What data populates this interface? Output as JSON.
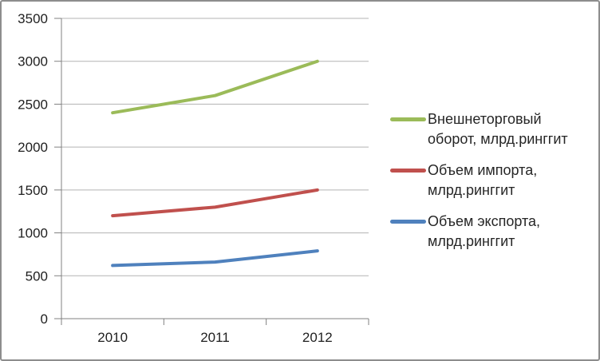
{
  "chart_data": {
    "type": "line",
    "categories": [
      "2010",
      "2011",
      "2012"
    ],
    "series": [
      {
        "name": "Внешнеторговый оборот, млрд.ринггит",
        "values": [
          2400,
          2600,
          3000
        ],
        "color": "#9BBB59"
      },
      {
        "name": "Объем импорта, млрд.ринггит",
        "values": [
          1200,
          1300,
          1500
        ],
        "color": "#C0504D"
      },
      {
        "name": "Объем экспорта, млрд.ринггит",
        "values": [
          620,
          660,
          790
        ],
        "color": "#4F81BD"
      }
    ],
    "title": "",
    "xlabel": "",
    "ylabel": "",
    "ylim": [
      0,
      3500
    ],
    "ytick_step": 500,
    "yticks": [
      "0",
      "500",
      "1000",
      "1500",
      "2000",
      "2500",
      "3000",
      "3500"
    ],
    "grid": true,
    "legend_position": "right",
    "line_width": 4
  },
  "style": {
    "gridline_color": "#b3b3b3",
    "axis_color": "#808080",
    "tick_color": "#808080",
    "tick_label_color": "#1f1f1f",
    "frame_border_color": "#8d8d8d",
    "background": "#ffffff"
  }
}
